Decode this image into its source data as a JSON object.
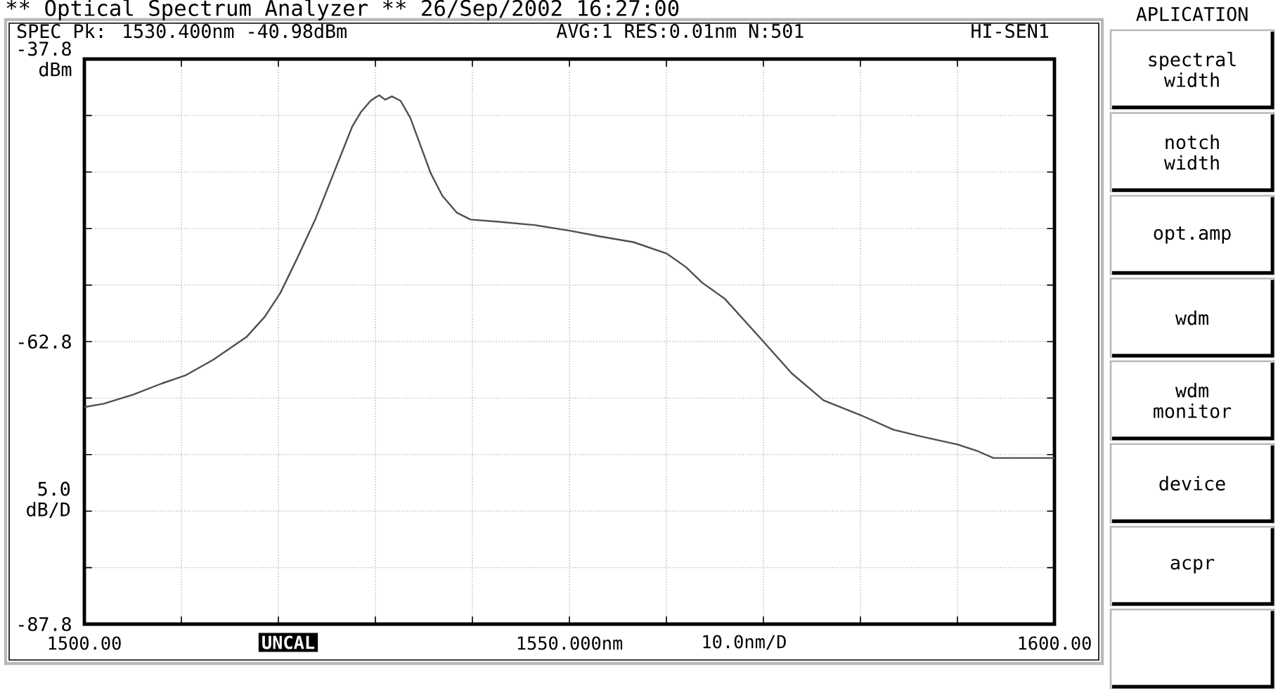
{
  "chart_data": {
    "type": "line",
    "title": "** Optical Spectrum Analyzer **  26/Sep/2002 16:27:00",
    "xlabel": "10.0nm/D",
    "ylabel": "5.0 dB/D",
    "x": [
      1500,
      1502,
      1505,
      1508,
      1510.4,
      1513.3,
      1516.7,
      1518.6,
      1520.2,
      1521.9,
      1523.8,
      1525.7,
      1527.6,
      1528.5,
      1529.5,
      1530.0,
      1530.4,
      1531.0,
      1531.7,
      1532.6,
      1533.6,
      1534.5,
      1535.7,
      1536.9,
      1538.4,
      1539.8,
      1542.7,
      1546.5,
      1550.1,
      1553.2,
      1556.6,
      1560.0,
      1562.0,
      1563.7,
      1566.0,
      1568.0,
      1570.0,
      1572.9,
      1576.2,
      1580.0,
      1583.4,
      1586.3,
      1590.0,
      1592.1,
      1593.7,
      1596.4,
      1600
    ],
    "series": [
      {
        "color": "#505050",
        "values": [
          -68.6,
          -68.3,
          -67.5,
          -66.5,
          -65.8,
          -64.4,
          -62.4,
          -60.6,
          -58.5,
          -55.5,
          -52.0,
          -47.9,
          -43.8,
          -42.5,
          -41.5,
          -41.2,
          -41.0,
          -41.4,
          -41.1,
          -41.5,
          -43.0,
          -45.1,
          -47.9,
          -49.9,
          -51.4,
          -52.0,
          -52.2,
          -52.5,
          -53.0,
          -53.5,
          -54.0,
          -55.0,
          -56.2,
          -57.6,
          -59.0,
          -60.9,
          -62.8,
          -65.6,
          -68.0,
          -69.3,
          -70.6,
          -71.2,
          -71.9,
          -72.5,
          -73.1,
          -73.1,
          -73.1
        ]
      }
    ],
    "xlim": [
      1500,
      1600
    ],
    "ylim": [
      -87.8,
      -37.8
    ],
    "xticks": [
      {
        "value": 1500,
        "label": "1500.00"
      },
      {
        "value": 1510,
        "label": null
      },
      {
        "value": 1520,
        "label": null
      },
      {
        "value": 1530,
        "label": null
      },
      {
        "value": 1540,
        "label": null
      },
      {
        "value": 1550,
        "label": "1550.000nm"
      },
      {
        "value": 1560,
        "label": null
      },
      {
        "value": 1570,
        "label": null
      },
      {
        "value": 1580,
        "label": null
      },
      {
        "value": 1590,
        "label": null
      },
      {
        "value": 1600,
        "label": "1600.00"
      }
    ],
    "yticks": [
      {
        "value": -37.8,
        "label": "-37.8 dBm"
      },
      {
        "value": -42.8,
        "label": null
      },
      {
        "value": -47.8,
        "label": null
      },
      {
        "value": -52.8,
        "label": null
      },
      {
        "value": -57.8,
        "label": null
      },
      -62.8,
      {
        "value": -67.8,
        "label": null
      },
      {
        "value": -72.8,
        "label": null
      },
      {
        "value": -77.8,
        "label": null
      },
      {
        "value": -82.8,
        "label": null
      },
      -87.8
    ],
    "grid": true,
    "line_style": "solid",
    "annotations": [
      "SPEC Pk: 1530.400nm -40.98dBm",
      "AVG:1 RES:0.01nm N:501",
      "HI-SEN1",
      "UNCAL",
      "APLICATION",
      "spectral width",
      "notch width",
      "opt.amp",
      "wdm",
      "wdm monitor",
      "device",
      "acpr"
    ]
  }
}
